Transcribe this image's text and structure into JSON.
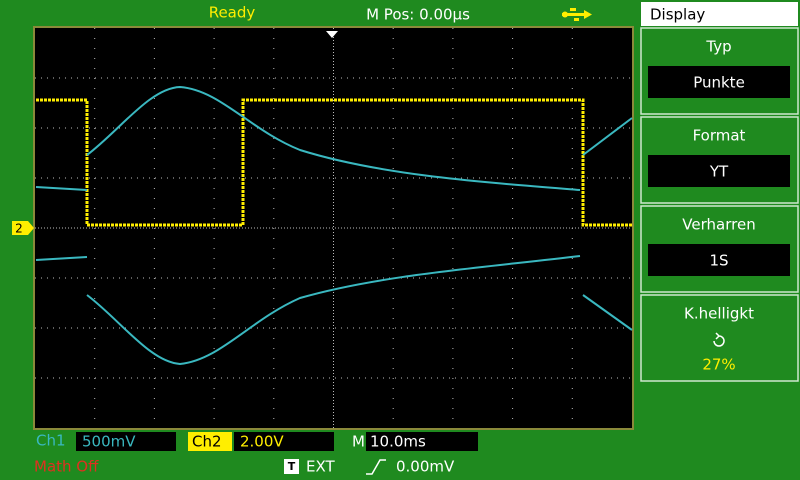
{
  "status": {
    "state": "Ready",
    "position": "M Pos: 0.00µs"
  },
  "menu": {
    "title": "Display",
    "items": [
      {
        "label": "Typ",
        "value": "Punkte"
      },
      {
        "label": "Format",
        "value": "YT"
      },
      {
        "label": "Verharren",
        "value": "1S"
      },
      {
        "label": "K.helligkt",
        "value": "27%"
      }
    ]
  },
  "channels": [
    {
      "name": "Ch1",
      "scale": "500mV"
    },
    {
      "name": "Ch2",
      "scale": "2.00V"
    }
  ],
  "ch2_marker": "2",
  "timebase": {
    "label": "M",
    "value": "10.0ms"
  },
  "math": "Math Off",
  "trigger": {
    "icon": "T",
    "source": "EXT",
    "level": "0.00mV"
  }
}
